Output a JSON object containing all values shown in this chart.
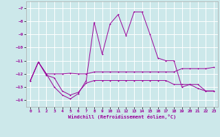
{
  "xlabel": "Windchill (Refroidissement éolien,°C)",
  "background_color": "#cce8ea",
  "grid_color": "#ffffff",
  "line_color": "#990099",
  "x_ticks": [
    0,
    1,
    2,
    3,
    4,
    5,
    6,
    7,
    8,
    9,
    10,
    11,
    12,
    13,
    14,
    15,
    16,
    17,
    18,
    19,
    20,
    21,
    22,
    23
  ],
  "ylim": [
    -14.5,
    -6.5
  ],
  "yticks": [
    -14,
    -13,
    -12,
    -11,
    -10,
    -9,
    -8,
    -7
  ],
  "line1_y": [
    -12.5,
    -11.1,
    -12.0,
    -12.0,
    -12.0,
    -11.95,
    -12.0,
    -12.0,
    -11.85,
    -11.85,
    -11.85,
    -11.85,
    -11.85,
    -11.85,
    -11.85,
    -11.85,
    -11.85,
    -11.85,
    -11.85,
    -11.6,
    -11.6,
    -11.6,
    -11.6,
    -11.5
  ],
  "line2_y": [
    -12.5,
    -11.1,
    -12.1,
    -12.3,
    -13.3,
    -13.6,
    -13.4,
    -12.7,
    -12.5,
    -12.5,
    -12.5,
    -12.5,
    -12.5,
    -12.5,
    -12.5,
    -12.5,
    -12.5,
    -12.5,
    -12.8,
    -12.8,
    -12.8,
    -13.1,
    -13.3,
    -13.3
  ],
  "line3_y": [
    -12.5,
    -11.1,
    -12.0,
    -13.0,
    -13.6,
    -13.9,
    -13.5,
    -12.5,
    -8.1,
    -10.5,
    -8.2,
    -7.5,
    -9.1,
    -7.3,
    -7.3,
    -9.0,
    -10.8,
    -11.0,
    -11.0,
    -13.0,
    -12.8,
    -12.8,
    -13.3,
    -13.3
  ]
}
